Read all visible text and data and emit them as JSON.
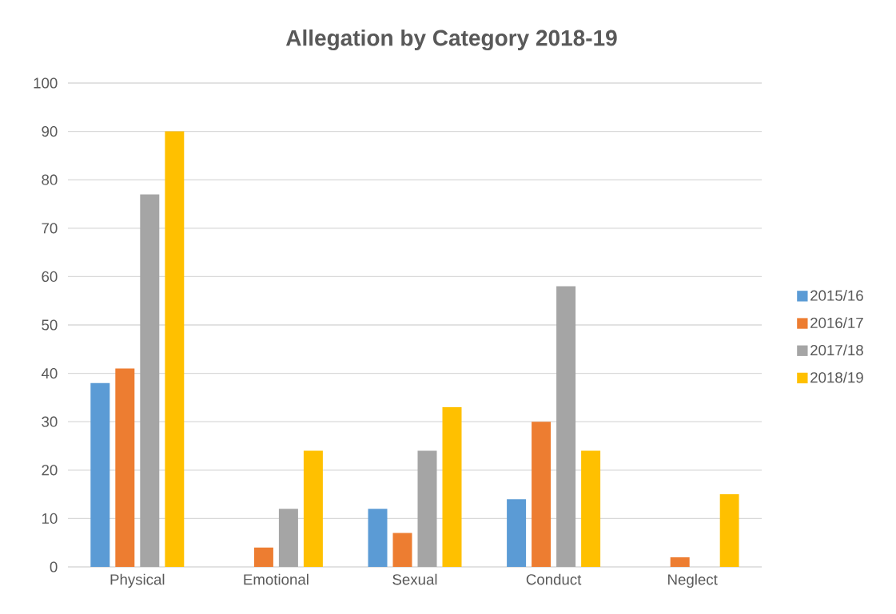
{
  "chart_data": {
    "type": "bar",
    "title": "Allegation by Category 2018-19",
    "categories": [
      "Physical",
      "Emotional",
      "Sexual",
      "Conduct",
      "Neglect"
    ],
    "series": [
      {
        "name": "2015/16",
        "color": "#5b9bd5",
        "values": [
          38,
          0,
          12,
          14,
          0
        ]
      },
      {
        "name": "2016/17",
        "color": "#ed7d31",
        "values": [
          41,
          4,
          7,
          30,
          2
        ]
      },
      {
        "name": "2017/18",
        "color": "#a5a5a5",
        "values": [
          77,
          12,
          24,
          58,
          0
        ]
      },
      {
        "name": "2018/19",
        "color": "#ffc000",
        "values": [
          90,
          24,
          33,
          24,
          15
        ]
      }
    ],
    "ylim": [
      0,
      100
    ],
    "yticks": [
      0,
      10,
      20,
      30,
      40,
      50,
      60,
      70,
      80,
      90,
      100
    ],
    "grid": "y",
    "legend": "right"
  }
}
